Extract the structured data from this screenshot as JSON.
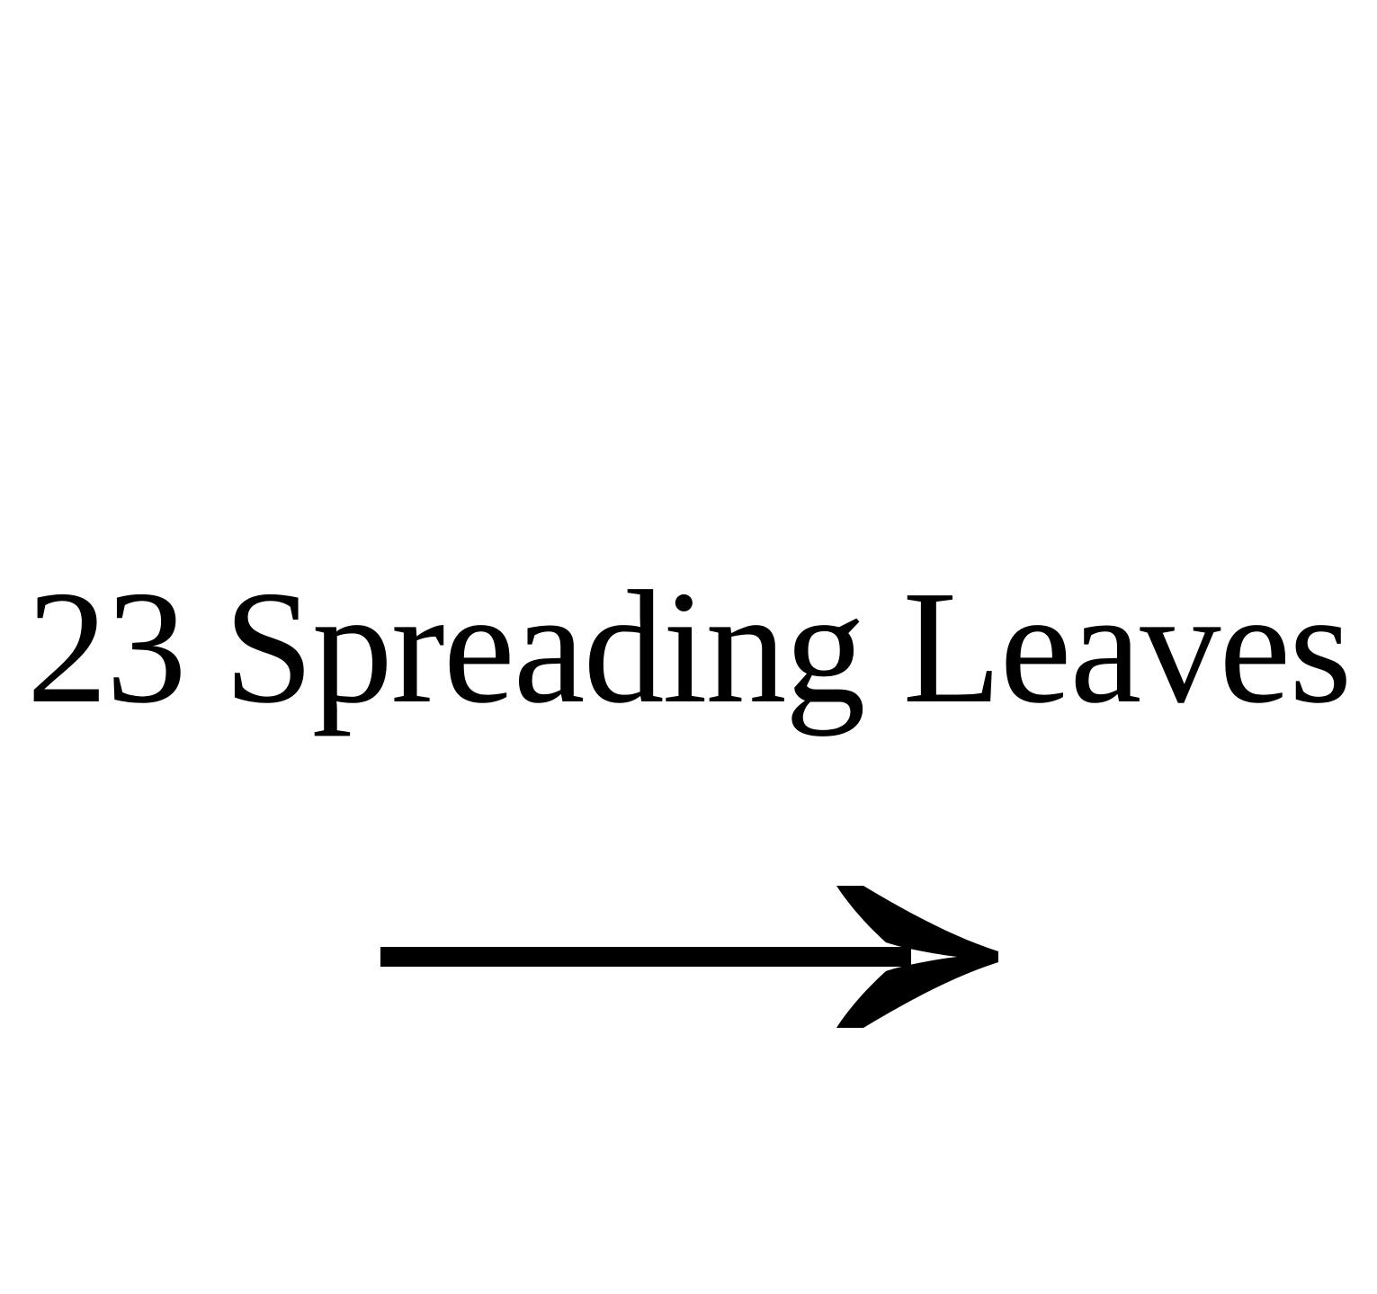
{
  "title": "23 Spreading Leaves",
  "arrow_icon": "right-arrow-icon",
  "colors": {
    "background": "#ffffff",
    "text": "#000000"
  }
}
